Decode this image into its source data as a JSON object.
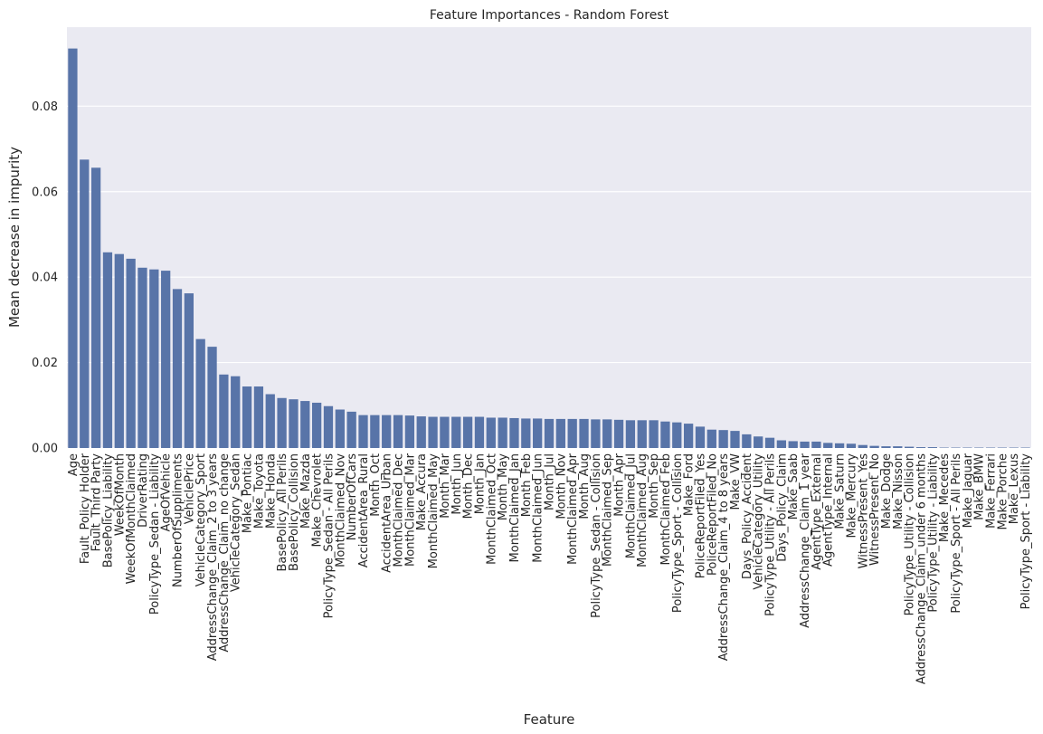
{
  "chart_data": {
    "type": "bar",
    "title": "Feature Importances - Random Forest",
    "xlabel": "Feature",
    "ylabel": "Mean decrease in impurity",
    "ylim": [
      0,
      0.0985
    ],
    "yticks": [
      0,
      0.02,
      0.04,
      0.06,
      0.08
    ],
    "ytick_labels": [
      "0.00",
      "0.02",
      "0.04",
      "0.06",
      "0.08"
    ],
    "grid": true,
    "bar_color": "#5874a8",
    "background_color": "#eaeaf2",
    "categories": [
      "Age",
      "Fault_Policy Holder",
      "Fault_Third Party",
      "BasePolicy_Liability",
      "WeekOfMonth",
      "WeekOfMonthClaimed",
      "DriverRating",
      "PolicyType_Sedan - Liability",
      "AgeOfVehicle",
      "NumberOfSuppliments",
      "VehiclePrice",
      "VehicleCategory_Sport",
      "AddressChange_Claim_2 to 3 years",
      "AddressChange_Claim_no change",
      "VehicleCategory_Sedan",
      "Make_Pontiac",
      "Make_Toyota",
      "Make_Honda",
      "BasePolicy_All Perils",
      "BasePolicy_Collision",
      "Make_Mazda",
      "Make_Chevrolet",
      "PolicyType_Sedan - All Perils",
      "MonthClaimed_Nov",
      "NumberOfCars",
      "AccidentArea_Rural",
      "Month_Oct",
      "AccidentArea_Urban",
      "MonthClaimed_Dec",
      "MonthClaimed_Mar",
      "Make_Accura",
      "MonthClaimed_May",
      "Month_Mar",
      "Month_Jun",
      "Month_Dec",
      "Month_Jan",
      "MonthClaimed_Oct",
      "Month_May",
      "MonthClaimed_Jan",
      "Month_Feb",
      "MonthClaimed_Jun",
      "Month_Jul",
      "Month_Nov",
      "MonthClaimed_Apr",
      "Month_Aug",
      "PolicyType_Sedan - Collision",
      "MonthClaimed_Sep",
      "Month_Apr",
      "MonthClaimed_Jul",
      "MonthClaimed_Aug",
      "Month_Sep",
      "MonthClaimed_Feb",
      "PolicyType_Sport - Collision",
      "Make_Ford",
      "PoliceReportFiled_Yes",
      "PoliceReportFiled_No",
      "AddressChange_Claim_4 to 8 years",
      "Make_VW",
      "Days_Policy_Accident",
      "VehicleCategory_Utility",
      "PolicyType_Utility - All Perils",
      "Days_Policy_Claim",
      "Make_Saab",
      "AddressChange_Claim_1 year",
      "AgentType_External",
      "AgentType_Internal",
      "Make_Saturn",
      "Make_Mercury",
      "WitnessPresent_Yes",
      "WitnessPresent_No",
      "Make_Dodge",
      "Make_Nisson",
      "PolicyType_Utility - Collision",
      "AddressChange_Claim_under 6 months",
      "PolicyType_Utility - Liability",
      "Make_Mecedes",
      "PolicyType_Sport - All Perils",
      "Make_Jaguar",
      "Make_BMW",
      "Make_Ferrari",
      "Make_Porche",
      "Make_Lexus",
      "PolicyType_Sport - Liability"
    ],
    "values": [
      0.0935,
      0.0675,
      0.0656,
      0.0458,
      0.0454,
      0.0443,
      0.0422,
      0.0418,
      0.0415,
      0.0372,
      0.0362,
      0.0255,
      0.0237,
      0.0172,
      0.0168,
      0.0144,
      0.0144,
      0.0126,
      0.0117,
      0.0114,
      0.011,
      0.0106,
      0.0098,
      0.009,
      0.0085,
      0.0077,
      0.0077,
      0.0077,
      0.0077,
      0.0076,
      0.0074,
      0.0073,
      0.0073,
      0.0073,
      0.0073,
      0.0073,
      0.0071,
      0.0071,
      0.007,
      0.0069,
      0.0069,
      0.0068,
      0.0068,
      0.0068,
      0.0068,
      0.0067,
      0.0067,
      0.0066,
      0.0065,
      0.0065,
      0.0065,
      0.0062,
      0.006,
      0.0057,
      0.005,
      0.0043,
      0.0042,
      0.004,
      0.0032,
      0.0027,
      0.0024,
      0.0018,
      0.0016,
      0.0015,
      0.0015,
      0.0012,
      0.0011,
      0.001,
      0.0007,
      0.0005,
      0.0004,
      0.0004,
      0.0003,
      0.0002,
      0.0002,
      0.0001,
      0.0001,
      0.0001,
      0.0001,
      0.0001,
      0.0001,
      0.0001,
      0.0001
    ]
  }
}
